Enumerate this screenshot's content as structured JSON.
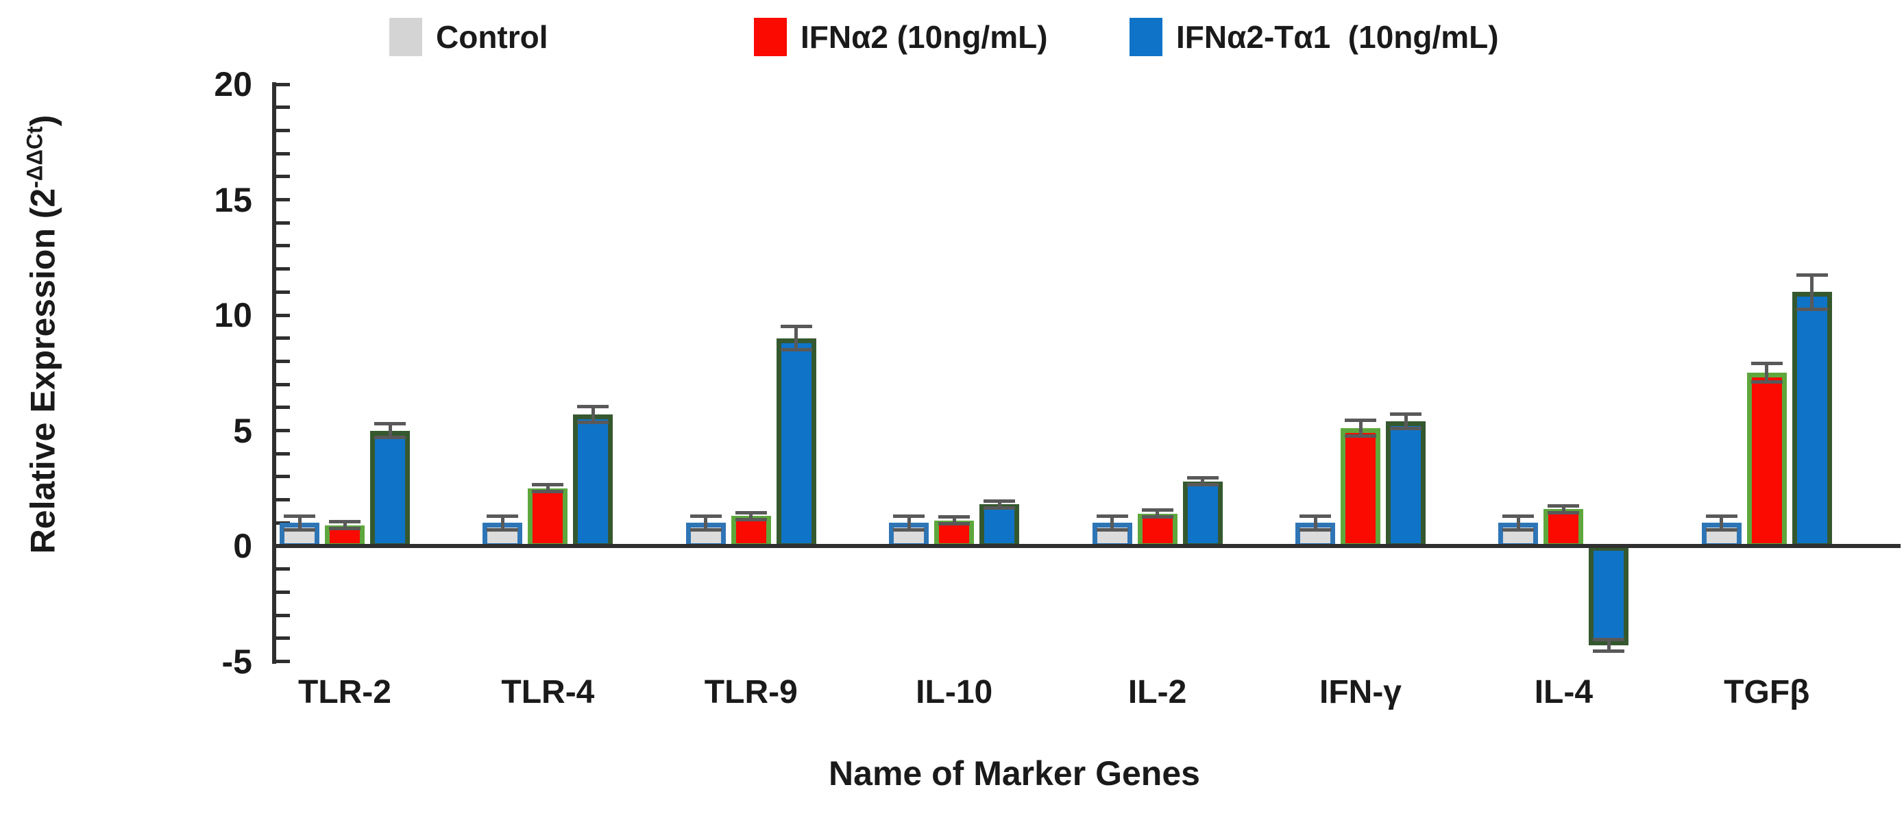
{
  "y_axis": {
    "title_prefix": "Relative Expression (2",
    "title_sup": "-ΔΔCt",
    "title_suffix": ")",
    "tick_labels": [
      20,
      15,
      10,
      5,
      0,
      -5
    ],
    "minor_tick_step": 1
  },
  "x_axis": {
    "title": "Name of Marker Genes"
  },
  "chart_data": {
    "type": "bar",
    "title": "",
    "categories": [
      "TLR-2",
      "TLR-4",
      "TLR-9",
      "IL-10",
      "IL-2",
      "IFN-γ",
      "IL-4",
      "TGFβ"
    ],
    "series": [
      {
        "key": "control",
        "name": "Control",
        "color": "#d4d4d4",
        "fill": "#dcdcdc",
        "border_color": "#2e75b6",
        "values": [
          1.0,
          1.0,
          1.0,
          1.0,
          1.0,
          1.0,
          1.0,
          1.0
        ],
        "errors": [
          0.3,
          0.3,
          0.3,
          0.3,
          0.3,
          0.3,
          0.3,
          0.3
        ]
      },
      {
        "key": "ifna2",
        "name": "IFNα2 (10ng/mL)",
        "color": "#fa0a00",
        "fill": "#fa0a00",
        "border_color": "#5ea73d",
        "values": [
          0.9,
          2.5,
          1.3,
          1.1,
          1.4,
          5.1,
          1.6,
          7.5
        ],
        "errors": [
          0.15,
          0.15,
          0.15,
          0.15,
          0.15,
          0.35,
          0.15,
          0.4
        ]
      },
      {
        "key": "ifna2-ta1",
        "name": "IFNα2-Tα1  (10ng/mL)",
        "color": "#0f74c8",
        "fill": "#0f74c8",
        "border_color": "#35582f",
        "values": [
          5.0,
          5.7,
          9.0,
          1.8,
          2.8,
          5.4,
          -4.3,
          11.0
        ],
        "errors": [
          0.3,
          0.35,
          0.5,
          0.15,
          0.15,
          0.3,
          0.25,
          0.75
        ]
      }
    ],
    "xlabel": "Name of Marker Genes",
    "ylabel": "Relative Expression (2^-ΔΔCt)",
    "ylim": [
      -5,
      20
    ],
    "grid": false,
    "legend_position": "top",
    "error_bar_color": "#595959",
    "axis_color": "#2f2f2f"
  }
}
